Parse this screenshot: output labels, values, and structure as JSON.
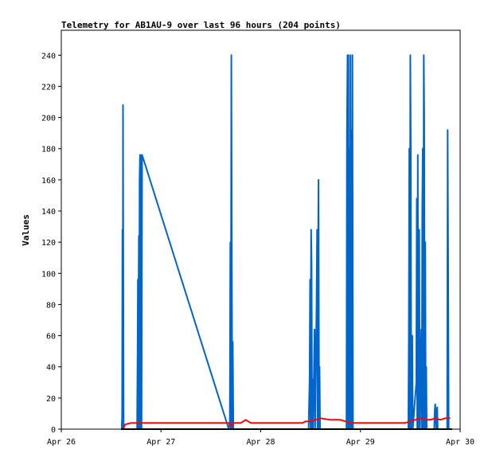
{
  "chart_data": {
    "type": "line",
    "title": "Telemetry for AB1AU-9 over last 96 hours (204 points)",
    "xlabel": "",
    "ylabel": "Values",
    "x_range_days": [
      0,
      4
    ],
    "x_ticks": [
      {
        "value": 0,
        "label": "Apr 26"
      },
      {
        "value": 1,
        "label": "Apr 27"
      },
      {
        "value": 2,
        "label": "Apr 28"
      },
      {
        "value": 3,
        "label": "Apr 29"
      },
      {
        "value": 4,
        "label": "Apr 30"
      }
    ],
    "ylim": [
      0,
      256
    ],
    "y_ticks": [
      0,
      20,
      40,
      60,
      80,
      100,
      120,
      140,
      160,
      180,
      200,
      220,
      240
    ],
    "grid": false,
    "legend": "none",
    "series": [
      {
        "color": "#0066cc",
        "points": [
          [
            0.605,
            0
          ],
          [
            0.61,
            8
          ],
          [
            0.613,
            128
          ],
          [
            0.616,
            0
          ],
          [
            0.619,
            208
          ],
          [
            0.622,
            104
          ],
          [
            0.625,
            0
          ],
          [
            0.76,
            0
          ],
          [
            0.765,
            48
          ],
          [
            0.768,
            96
          ],
          [
            0.771,
            0
          ],
          [
            0.775,
            90
          ],
          [
            0.778,
            124
          ],
          [
            0.781,
            0
          ],
          [
            0.785,
            160
          ],
          [
            0.79,
            176
          ],
          [
            0.795,
            0
          ],
          [
            0.8,
            176
          ],
          [
            0.805,
            0
          ],
          [
            0.81,
            176
          ],
          [
            1.68,
            0
          ],
          [
            1.69,
            5
          ],
          [
            1.695,
            120
          ],
          [
            1.7,
            0
          ],
          [
            1.705,
            240
          ],
          [
            1.71,
            112
          ],
          [
            1.715,
            0
          ],
          [
            1.72,
            56
          ],
          [
            1.725,
            0
          ],
          [
            2.48,
            0
          ],
          [
            2.49,
            32
          ],
          [
            2.495,
            96
          ],
          [
            2.5,
            0
          ],
          [
            2.505,
            128
          ],
          [
            2.51,
            106
          ],
          [
            2.515,
            0
          ],
          [
            2.52,
            32
          ],
          [
            2.525,
            0
          ],
          [
            2.54,
            64
          ],
          [
            2.545,
            0
          ],
          [
            2.56,
            80
          ],
          [
            2.565,
            128
          ],
          [
            2.57,
            0
          ],
          [
            2.575,
            104
          ],
          [
            2.58,
            160
          ],
          [
            2.585,
            0
          ],
          [
            2.59,
            40
          ],
          [
            2.595,
            0
          ],
          [
            2.86,
            0
          ],
          [
            2.865,
            190
          ],
          [
            2.87,
            240
          ],
          [
            2.875,
            0
          ],
          [
            2.88,
            240
          ],
          [
            2.885,
            0
          ],
          [
            2.89,
            180
          ],
          [
            2.895,
            0
          ],
          [
            2.9,
            240
          ],
          [
            2.905,
            0
          ],
          [
            2.91,
            192
          ],
          [
            2.915,
            0
          ],
          [
            2.92,
            240
          ],
          [
            2.925,
            0
          ],
          [
            3.48,
            0
          ],
          [
            3.485,
            60
          ],
          [
            3.49,
            180
          ],
          [
            3.495,
            0
          ],
          [
            3.5,
            240
          ],
          [
            3.505,
            180
          ],
          [
            3.51,
            0
          ],
          [
            3.52,
            60
          ],
          [
            3.525,
            0
          ],
          [
            3.56,
            30
          ],
          [
            3.565,
            148
          ],
          [
            3.57,
            0
          ],
          [
            3.575,
            176
          ],
          [
            3.58,
            0
          ],
          [
            3.59,
            128
          ],
          [
            3.595,
            0
          ],
          [
            3.61,
            64
          ],
          [
            3.615,
            0
          ],
          [
            3.62,
            140
          ],
          [
            3.625,
            180
          ],
          [
            3.63,
            0
          ],
          [
            3.635,
            240
          ],
          [
            3.64,
            200
          ],
          [
            3.645,
            0
          ],
          [
            3.65,
            120
          ],
          [
            3.655,
            0
          ],
          [
            3.66,
            40
          ],
          [
            3.665,
            0
          ],
          [
            3.74,
            0
          ],
          [
            3.745,
            12
          ],
          [
            3.75,
            16
          ],
          [
            3.755,
            10
          ],
          [
            3.76,
            0
          ],
          [
            3.77,
            14
          ],
          [
            3.775,
            0
          ],
          [
            3.87,
            0
          ],
          [
            3.875,
            192
          ],
          [
            3.88,
            96
          ],
          [
            3.885,
            0
          ]
        ]
      },
      {
        "color": "#ff0000",
        "points": [
          [
            0.6,
            0
          ],
          [
            0.62,
            0
          ],
          [
            0.64,
            3
          ],
          [
            0.7,
            4
          ],
          [
            1.0,
            4
          ],
          [
            1.3,
            4
          ],
          [
            1.68,
            4
          ],
          [
            1.7,
            2
          ],
          [
            1.72,
            4
          ],
          [
            1.8,
            4
          ],
          [
            1.85,
            6
          ],
          [
            1.9,
            4
          ],
          [
            2.2,
            4
          ],
          [
            2.42,
            4
          ],
          [
            2.45,
            5
          ],
          [
            2.5,
            5
          ],
          [
            2.55,
            6
          ],
          [
            2.6,
            7
          ],
          [
            2.7,
            6
          ],
          [
            2.8,
            6
          ],
          [
            2.85,
            5
          ],
          [
            2.9,
            4
          ],
          [
            3.2,
            4
          ],
          [
            3.45,
            4
          ],
          [
            3.5,
            5
          ],
          [
            3.55,
            6
          ],
          [
            3.6,
            7
          ],
          [
            3.65,
            6
          ],
          [
            3.7,
            6
          ],
          [
            3.75,
            7
          ],
          [
            3.8,
            6
          ],
          [
            3.85,
            7
          ],
          [
            3.9,
            7
          ]
        ]
      },
      {
        "color": "#000000",
        "points": [
          [
            0.6,
            0
          ],
          [
            3.92,
            0
          ]
        ]
      }
    ]
  }
}
